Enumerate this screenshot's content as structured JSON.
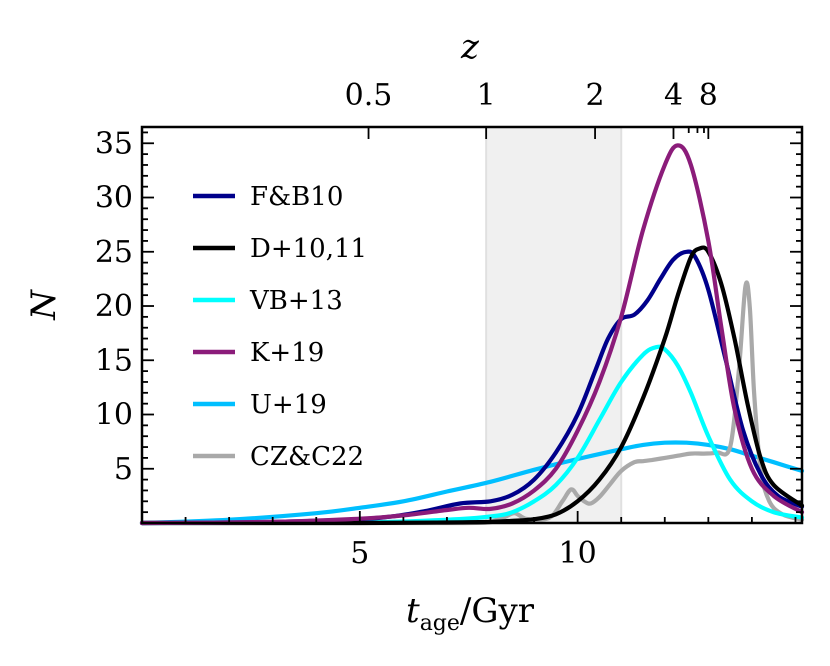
{
  "chart_data": {
    "type": "line",
    "xlabel_main": "t",
    "xlabel_sub": "age",
    "xlabel_unit": "/Gyr",
    "ylabel": "N",
    "top_axis_label": "z",
    "xlim": [
      0,
      15.15
    ],
    "ylim": [
      0,
      36.5
    ],
    "x_ticks": [
      5,
      10
    ],
    "y_ticks": [
      5,
      10,
      15,
      20,
      25,
      30,
      35
    ],
    "top_ticks": [
      {
        "label": "0.5",
        "x": 5.2
      },
      {
        "label": "1",
        "x": 7.9
      },
      {
        "label": "2",
        "x": 10.4
      },
      {
        "label": "4",
        "x": 12.2
      },
      {
        "label": "8",
        "x": 13.0
      }
    ],
    "top_minor_ticks": [
      12.55,
      12.75,
      12.9
    ],
    "shaded_region": {
      "x_start": 7.9,
      "x_end": 11.0,
      "color": "#f0f0f0"
    },
    "legend_position": "upper-left",
    "series": [
      {
        "name": "F&B10",
        "color": "#00008b",
        "x": [
          0.0,
          2.0,
          4.0,
          5.5,
          6.5,
          7.3,
          8.0,
          8.5,
          9.0,
          9.5,
          10.0,
          10.4,
          10.7,
          11.0,
          11.3,
          11.6,
          11.9,
          12.2,
          12.5,
          12.7,
          13.0,
          13.4,
          13.8,
          14.2,
          14.6,
          15.15
        ],
        "values": [
          0.0,
          0.05,
          0.2,
          0.5,
          1.1,
          1.8,
          2.0,
          2.6,
          4.0,
          6.5,
          10.0,
          14.0,
          17.0,
          18.8,
          19.2,
          20.5,
          22.5,
          24.3,
          25.0,
          24.5,
          21.5,
          15.0,
          8.5,
          4.5,
          2.5,
          1.5
        ]
      },
      {
        "name": "D+10,11",
        "color": "#000000",
        "x": [
          0.0,
          5.0,
          7.0,
          8.0,
          8.5,
          9.0,
          9.5,
          10.0,
          10.5,
          11.0,
          11.5,
          12.0,
          12.3,
          12.6,
          12.8,
          13.0,
          13.3,
          13.6,
          13.9,
          14.2,
          14.5,
          15.15
        ],
        "values": [
          0.0,
          0.0,
          0.05,
          0.1,
          0.2,
          0.35,
          0.8,
          2.0,
          4.0,
          7.0,
          11.5,
          17.0,
          21.0,
          24.5,
          25.3,
          25.0,
          22.0,
          17.0,
          11.0,
          6.0,
          3.5,
          1.6
        ]
      },
      {
        "name": "VB+13",
        "color": "#00ffff",
        "x": [
          0.0,
          5.0,
          7.0,
          8.0,
          8.5,
          9.0,
          9.5,
          10.0,
          10.5,
          11.0,
          11.5,
          11.8,
          12.0,
          12.3,
          12.6,
          13.0,
          13.5,
          14.0,
          14.5,
          15.15
        ],
        "values": [
          0.0,
          0.05,
          0.3,
          0.6,
          1.0,
          2.0,
          3.5,
          6.0,
          9.5,
          13.0,
          15.5,
          16.2,
          16.0,
          14.5,
          12.0,
          8.0,
          4.0,
          2.0,
          1.0,
          0.5
        ]
      },
      {
        "name": "K+19",
        "color": "#8b1c7a",
        "x": [
          0.0,
          3.0,
          5.0,
          6.0,
          7.0,
          7.5,
          8.0,
          8.5,
          9.0,
          9.5,
          10.0,
          10.5,
          11.0,
          11.5,
          12.0,
          12.3,
          12.6,
          13.0,
          13.3,
          13.6,
          14.0,
          14.5,
          15.15
        ],
        "values": [
          0.0,
          0.1,
          0.4,
          0.7,
          1.2,
          1.4,
          1.3,
          1.8,
          3.0,
          5.0,
          8.5,
          13.0,
          19.0,
          27.0,
          33.0,
          34.8,
          33.0,
          26.0,
          18.0,
          10.5,
          5.0,
          2.5,
          1.0
        ]
      },
      {
        "name": "U+19",
        "color": "#00bfff",
        "x": [
          0.0,
          2.0,
          4.0,
          5.0,
          6.0,
          7.0,
          8.0,
          9.0,
          10.0,
          11.0,
          11.5,
          12.0,
          12.5,
          13.0,
          13.5,
          14.0,
          14.5,
          15.15
        ],
        "values": [
          0.0,
          0.3,
          0.9,
          1.4,
          2.0,
          2.9,
          3.8,
          4.9,
          5.9,
          6.8,
          7.2,
          7.4,
          7.4,
          7.2,
          6.8,
          6.2,
          5.6,
          4.8
        ]
      },
      {
        "name": "CZ&C22",
        "color": "#a9a9a9",
        "x": [
          0.0,
          6.0,
          7.8,
          8.1,
          8.3,
          8.55,
          8.8,
          9.1,
          9.4,
          9.65,
          9.85,
          10.0,
          10.15,
          10.3,
          10.5,
          10.75,
          11.0,
          11.3,
          11.5,
          11.7,
          12.0,
          12.3,
          12.6,
          12.9,
          13.2,
          13.5,
          13.7,
          13.85,
          13.95,
          14.05,
          14.2,
          14.4,
          14.7,
          15.15
        ],
        "values": [
          0.0,
          0.0,
          0.02,
          0.25,
          0.5,
          0.9,
          0.4,
          0.3,
          0.6,
          2.0,
          3.1,
          2.5,
          2.0,
          1.8,
          2.4,
          3.6,
          4.8,
          5.6,
          5.7,
          5.8,
          6.0,
          6.2,
          6.4,
          6.4,
          6.5,
          7.0,
          14.0,
          21.8,
          20.0,
          12.0,
          5.0,
          2.0,
          0.8,
          0.3
        ]
      }
    ]
  }
}
